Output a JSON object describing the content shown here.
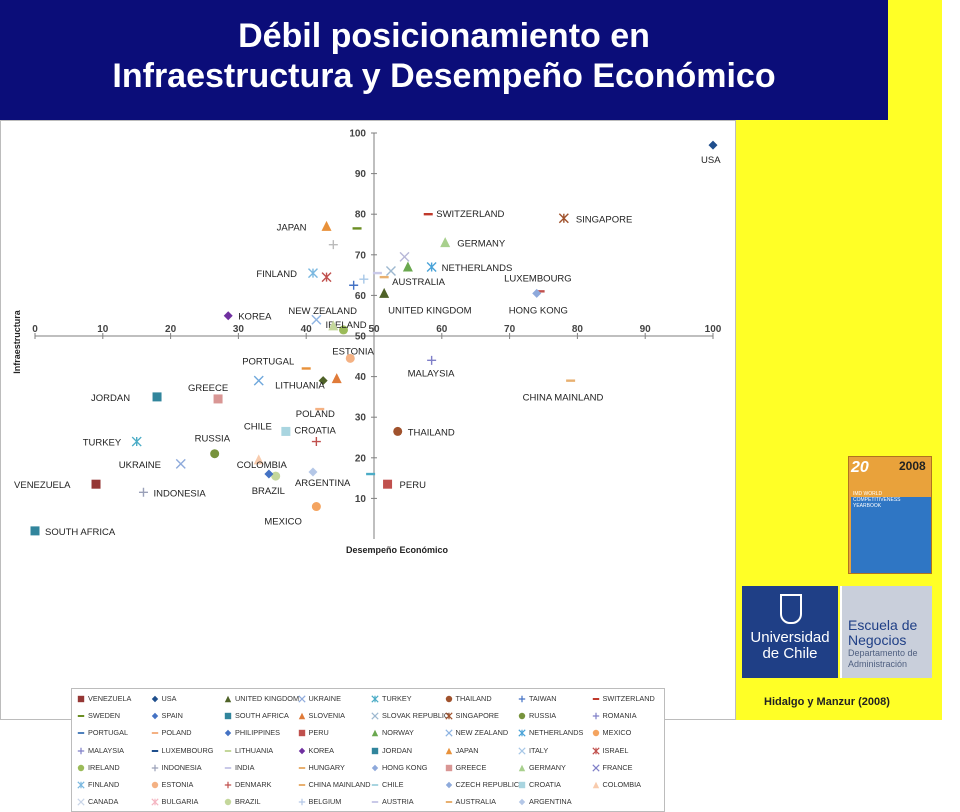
{
  "header": {
    "title_line1": "Débil posicionamiento en",
    "title_line2": "Infraestructura y Desempeño Económico"
  },
  "colors": {
    "header_bg": "#0b0d79",
    "side_bg": "#ffff26",
    "usa": "#1f4e8c"
  },
  "chart_data": {
    "type": "scatter",
    "title": "",
    "xlabel": "Desempeño Económico",
    "ylabel": "Infraestructura",
    "xlim": [
      0,
      100
    ],
    "ylim": [
      0,
      100
    ],
    "x_ticks": [
      "0",
      "10",
      "20",
      "30",
      "40",
      "50",
      "60",
      "70",
      "80",
      "90",
      "100"
    ],
    "y_ticks": [
      "10",
      "20",
      "30",
      "40",
      "50",
      "60",
      "70",
      "80",
      "90",
      "100"
    ],
    "grid": false,
    "legend_position": "bottom",
    "points": [
      {
        "label": "USA",
        "x": 100,
        "y": 97,
        "marker": "diamond",
        "color": "#1f4e8c"
      },
      {
        "label": "SWITZERLAND",
        "x": 58,
        "y": 80,
        "marker": "dash",
        "color": "#c0392b"
      },
      {
        "label": "SINGAPORE",
        "x": 78,
        "y": 79,
        "marker": "asterisk",
        "color": "#a0522d"
      },
      {
        "label": "JAPAN",
        "x": 43,
        "y": 77,
        "marker": "triangle",
        "color": "#e8913a"
      },
      {
        "label": "",
        "x": 47.5,
        "y": 76.5,
        "marker": "dash",
        "color": "#6b8e23"
      },
      {
        "label": "",
        "x": 44,
        "y": 72.5,
        "marker": "plus",
        "color": "#bbbbbb"
      },
      {
        "label": "GERMANY",
        "x": 60.5,
        "y": 73,
        "marker": "triangle",
        "color": "#a8d08d"
      },
      {
        "label": "",
        "x": 54.5,
        "y": 69.5,
        "marker": "x",
        "color": "#b8b8d8"
      },
      {
        "label": "NETHERLANDS",
        "x": 58.5,
        "y": 67,
        "marker": "asterisk",
        "color": "#4aa3d8"
      },
      {
        "label": "",
        "x": 55,
        "y": 67,
        "marker": "triangle",
        "color": "#6aa84f"
      },
      {
        "label": "FINLAND",
        "x": 41,
        "y": 65.5,
        "marker": "asterisk",
        "color": "#7ab8e0"
      },
      {
        "label": "",
        "x": 43,
        "y": 64.5,
        "marker": "asterisk",
        "color": "#c0504d"
      },
      {
        "label": "",
        "x": 52.5,
        "y": 66,
        "marker": "x",
        "color": "#9db8d0"
      },
      {
        "label": "AUSTRALIA",
        "x": 51.5,
        "y": 64.5,
        "marker": "dash",
        "color": "#e8b070"
      },
      {
        "label": "",
        "x": 50.5,
        "y": 65.5,
        "marker": "dash",
        "color": "#c9c9e8"
      },
      {
        "label": "",
        "x": 48.5,
        "y": 64,
        "marker": "plus",
        "color": "#a7c7e7"
      },
      {
        "label": "",
        "x": 47,
        "y": 62.5,
        "marker": "plus",
        "color": "#4472c4"
      },
      {
        "label": "LUXEMBOURG",
        "x": 74.5,
        "y": 61,
        "marker": "dash",
        "color": "#c0504d"
      },
      {
        "label": "HONG KONG",
        "x": 74,
        "y": 60.5,
        "marker": "diamond",
        "color": "#8ea9db"
      },
      {
        "label": "UNITED KINGDOM",
        "x": 51.5,
        "y": 60.5,
        "marker": "triangle",
        "color": "#4f6228"
      },
      {
        "label": "KOREA",
        "x": 28.5,
        "y": 55,
        "marker": "diamond",
        "color": "#7030a0"
      },
      {
        "label": "NEW ZEALAND",
        "x": 41.5,
        "y": 54,
        "marker": "x",
        "color": "#8db3e2"
      },
      {
        "label": "IRELAND",
        "x": 45.5,
        "y": 51.5,
        "marker": "circle",
        "color": "#9bbb59"
      },
      {
        "label": "",
        "x": 44,
        "y": 52.5,
        "marker": "triangle",
        "color": "#c4d79b"
      },
      {
        "label": "ESTONIA",
        "x": 46.5,
        "y": 44.5,
        "marker": "circle",
        "color": "#f4b183"
      },
      {
        "label": "PORTUGAL",
        "x": 40,
        "y": 42,
        "marker": "dash",
        "color": "#e8913a"
      },
      {
        "label": "",
        "x": 33,
        "y": 39,
        "marker": "x",
        "color": "#6fa8dc"
      },
      {
        "label": "LITHUANIA",
        "x": 42.5,
        "y": 39,
        "marker": "diamond",
        "color": "#4f6228"
      },
      {
        "label": "",
        "x": 44.5,
        "y": 39.5,
        "marker": "triangle",
        "color": "#e07b39"
      },
      {
        "label": "MALAYSIA",
        "x": 58.5,
        "y": 44,
        "marker": "plus",
        "color": "#7f7fc8"
      },
      {
        "label": "CHINA MAINLAND",
        "x": 79,
        "y": 39,
        "marker": "dash",
        "color": "#e8b070"
      },
      {
        "label": "JORDAN",
        "x": 18,
        "y": 35,
        "marker": "square",
        "color": "#31859c"
      },
      {
        "label": "GREECE",
        "x": 27,
        "y": 34.5,
        "marker": "square",
        "color": "#d99694"
      },
      {
        "label": "POLAND",
        "x": 42,
        "y": 32,
        "marker": "dash",
        "color": "#f4b183"
      },
      {
        "label": "THAILAND",
        "x": 53.5,
        "y": 26.5,
        "marker": "circle",
        "color": "#a0522d"
      },
      {
        "label": "CHILE",
        "x": 37,
        "y": 26.5,
        "marker": "square",
        "color": "#a9d5e0"
      },
      {
        "label": "CROATIA",
        "x": 41.5,
        "y": 24,
        "marker": "plus",
        "color": "#c0504d"
      },
      {
        "label": "TURKEY",
        "x": 15,
        "y": 24,
        "marker": "asterisk",
        "color": "#4bacc6"
      },
      {
        "label": "RUSSIA",
        "x": 26.5,
        "y": 21,
        "marker": "circle",
        "color": "#77933c"
      },
      {
        "label": "COLOMBIA",
        "x": 33,
        "y": 19.5,
        "marker": "triangle",
        "color": "#f8cbad"
      },
      {
        "label": "UKRAINE",
        "x": 21.5,
        "y": 18.5,
        "marker": "x",
        "color": "#8eaadb"
      },
      {
        "label": "BRAZIL",
        "x": 35.5,
        "y": 15.5,
        "marker": "circle",
        "color": "#c4d79b"
      },
      {
        "label": "",
        "x": 34.5,
        "y": 16,
        "marker": "diamond",
        "color": "#4472c4"
      },
      {
        "label": "ARGENTINA",
        "x": 41,
        "y": 16.5,
        "marker": "diamond",
        "color": "#b4c7e7"
      },
      {
        "label": "",
        "x": 49.5,
        "y": 16,
        "marker": "dash",
        "color": "#4bacc6"
      },
      {
        "label": "PERU",
        "x": 52,
        "y": 13.5,
        "marker": "square",
        "color": "#c0504d"
      },
      {
        "label": "VENEZUELA",
        "x": 9,
        "y": 13.5,
        "marker": "square",
        "color": "#953735"
      },
      {
        "label": "INDONESIA",
        "x": 16,
        "y": 11.5,
        "marker": "plus",
        "color": "#9aa0b8"
      },
      {
        "label": "MEXICO",
        "x": 41.5,
        "y": 8,
        "marker": "circle",
        "color": "#f4a460"
      },
      {
        "label": "SOUTH AFRICA",
        "x": 0,
        "y": 2,
        "marker": "square",
        "color": "#31859c"
      }
    ],
    "legend": [
      {
        "name": "VENEZUELA",
        "marker": "square",
        "color": "#953735"
      },
      {
        "name": "USA",
        "marker": "diamond",
        "color": "#1f4e8c"
      },
      {
        "name": "UNITED KINGDOM",
        "marker": "triangle",
        "color": "#4f6228"
      },
      {
        "name": "UKRAINE",
        "marker": "x",
        "color": "#8eaadb"
      },
      {
        "name": "TURKEY",
        "marker": "asterisk",
        "color": "#4bacc6"
      },
      {
        "name": "THAILAND",
        "marker": "circle",
        "color": "#a0522d"
      },
      {
        "name": "TAIWAN",
        "marker": "plus",
        "color": "#4472c4"
      },
      {
        "name": "SWITZERLAND",
        "marker": "dash",
        "color": "#c0392b"
      },
      {
        "name": "SWEDEN",
        "marker": "dash",
        "color": "#6b8e23"
      },
      {
        "name": "SPAIN",
        "marker": "diamond",
        "color": "#4472c4"
      },
      {
        "name": "SOUTH AFRICA",
        "marker": "square",
        "color": "#31859c"
      },
      {
        "name": "SLOVENIA",
        "marker": "triangle",
        "color": "#e07b39"
      },
      {
        "name": "SLOVAK REPUBLIC",
        "marker": "x",
        "color": "#9db8d0"
      },
      {
        "name": "SINGAPORE",
        "marker": "asterisk",
        "color": "#a0522d"
      },
      {
        "name": "RUSSIA",
        "marker": "circle",
        "color": "#77933c"
      },
      {
        "name": "ROMANIA",
        "marker": "plus",
        "color": "#7f7fc8"
      },
      {
        "name": "PORTUGAL",
        "marker": "dash",
        "color": "#4f81bd"
      },
      {
        "name": "POLAND",
        "marker": "dash",
        "color": "#f4b183"
      },
      {
        "name": "PHILIPPINES",
        "marker": "diamond",
        "color": "#4472c4"
      },
      {
        "name": "PERU",
        "marker": "square",
        "color": "#c0504d"
      },
      {
        "name": "NORWAY",
        "marker": "triangle",
        "color": "#6aa84f"
      },
      {
        "name": "NEW ZEALAND",
        "marker": "x",
        "color": "#8db3e2"
      },
      {
        "name": "NETHERLANDS",
        "marker": "asterisk",
        "color": "#4aa3d8"
      },
      {
        "name": "MEXICO",
        "marker": "circle",
        "color": "#f4a460"
      },
      {
        "name": "MALAYSIA",
        "marker": "plus",
        "color": "#7f7fc8"
      },
      {
        "name": "LUXEMBOURG",
        "marker": "dash",
        "color": "#1f4e8c"
      },
      {
        "name": "LITHUANIA",
        "marker": "dash",
        "color": "#c4d79b"
      },
      {
        "name": "KOREA",
        "marker": "diamond",
        "color": "#7030a0"
      },
      {
        "name": "JORDAN",
        "marker": "square",
        "color": "#31859c"
      },
      {
        "name": "JAPAN",
        "marker": "triangle",
        "color": "#e8913a"
      },
      {
        "name": "ITALY",
        "marker": "x",
        "color": "#a7c7e7"
      },
      {
        "name": "ISRAEL",
        "marker": "asterisk",
        "color": "#c0504d"
      },
      {
        "name": "IRELAND",
        "marker": "circle",
        "color": "#9bbb59"
      },
      {
        "name": "INDONESIA",
        "marker": "plus",
        "color": "#9aa0b8"
      },
      {
        "name": "INDIA",
        "marker": "dash",
        "color": "#c9c9e8"
      },
      {
        "name": "HUNGARY",
        "marker": "dash",
        "color": "#e8b070"
      },
      {
        "name": "HONG KONG",
        "marker": "diamond",
        "color": "#8ea9db"
      },
      {
        "name": "GREECE",
        "marker": "square",
        "color": "#d99694"
      },
      {
        "name": "GERMANY",
        "marker": "triangle",
        "color": "#a8d08d"
      },
      {
        "name": "FRANCE",
        "marker": "x",
        "color": "#7f7fc8"
      },
      {
        "name": "FINLAND",
        "marker": "asterisk",
        "color": "#7ab8e0"
      },
      {
        "name": "ESTONIA",
        "marker": "circle",
        "color": "#f4b183"
      },
      {
        "name": "DENMARK",
        "marker": "plus",
        "color": "#c0504d"
      },
      {
        "name": "CHINA MAINLAND",
        "marker": "dash",
        "color": "#e8b070"
      },
      {
        "name": "CHILE",
        "marker": "dash",
        "color": "#a9d5e0"
      },
      {
        "name": "CZECH REPUBLIC",
        "marker": "diamond",
        "color": "#8eaadb"
      },
      {
        "name": "CROATIA",
        "marker": "square",
        "color": "#a9d5e0"
      },
      {
        "name": "COLOMBIA",
        "marker": "triangle",
        "color": "#f8cbad"
      },
      {
        "name": "CANADA",
        "marker": "x",
        "color": "#c9d5e8"
      },
      {
        "name": "BULGARIA",
        "marker": "asterisk",
        "color": "#f4b6c2"
      },
      {
        "name": "BRAZIL",
        "marker": "circle",
        "color": "#c4d79b"
      },
      {
        "name": "BELGIUM",
        "marker": "plus",
        "color": "#b4c7e7"
      },
      {
        "name": "AUSTRIA",
        "marker": "dash",
        "color": "#c9c9e8"
      },
      {
        "name": "AUSTRALIA",
        "marker": "dash",
        "color": "#e8b070"
      },
      {
        "name": "ARGENTINA",
        "marker": "diamond",
        "color": "#b4c7e7"
      }
    ]
  },
  "book": {
    "badge": "20",
    "year": "2008",
    "caption": "IMD WORLD COMPETITIVENESS YEARBOOK"
  },
  "logos": {
    "uc_line1": "Universidad",
    "uc_line2": "de Chile",
    "en_line1": "Escuela de",
    "en_line2": "Negocios",
    "en_line3": "Departamento de",
    "en_line4": "Administración"
  },
  "credit": "Hidalgo y Manzur (2008)"
}
